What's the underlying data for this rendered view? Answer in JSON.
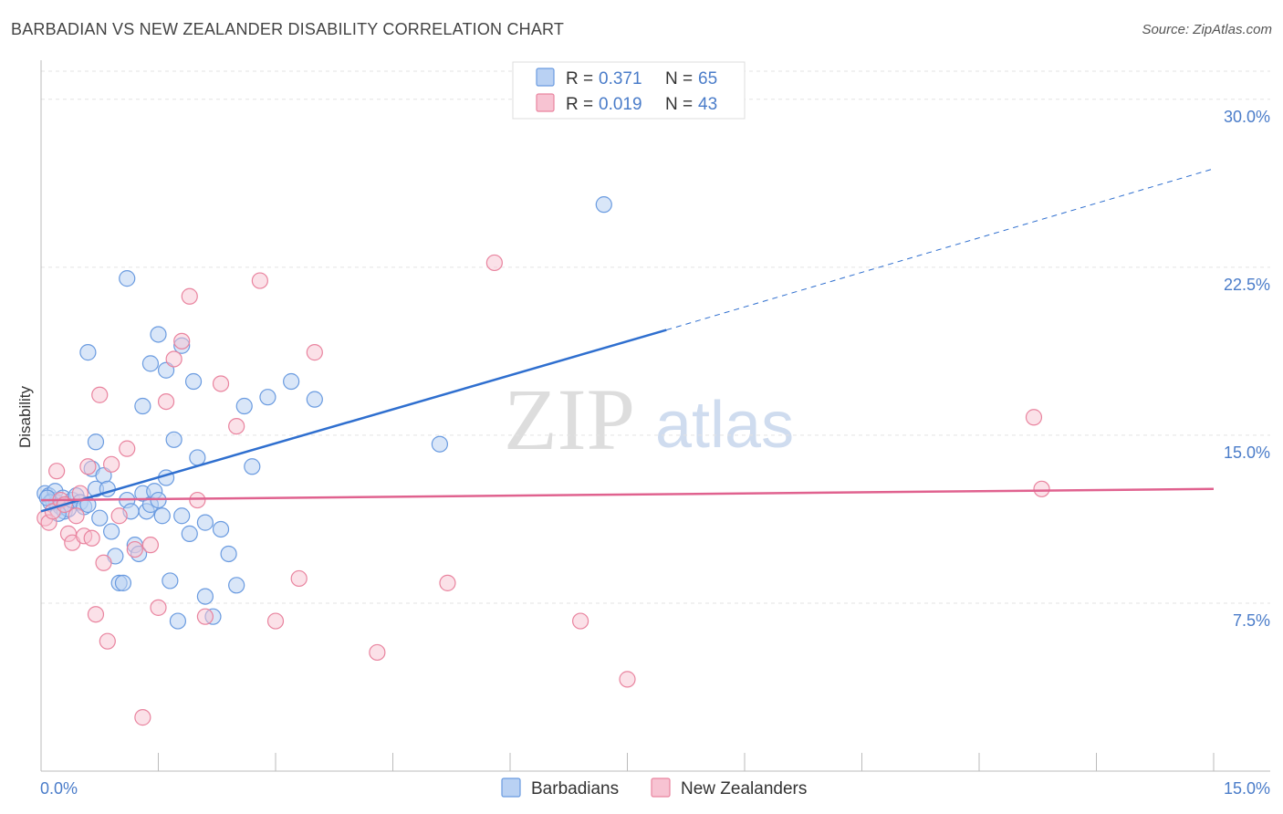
{
  "title": "BARBADIAN VS NEW ZEALANDER DISABILITY CORRELATION CHART",
  "source": "Source: ZipAtlas.com",
  "watermark": {
    "zip": "ZIP",
    "atlas": "atlas"
  },
  "chart_data": {
    "type": "scatter",
    "ylabel": "Disability",
    "xlim": [
      0,
      15
    ],
    "ylim": [
      0,
      31.5
    ],
    "y_ticks": [
      7.5,
      15.0,
      22.5,
      30.0
    ],
    "y_tick_labels": [
      "7.5%",
      "15.0%",
      "22.5%",
      "30.0%"
    ],
    "x_tick_labels": [
      "0.0%",
      "15.0%"
    ],
    "grid": "horizontal dashed",
    "legend_top": [
      {
        "r_label": "R =",
        "r_value": "0.371",
        "n_label": "N =",
        "n_value": "65"
      },
      {
        "r_label": "R =",
        "r_value": "0.019",
        "n_label": "N =",
        "n_value": "43"
      }
    ],
    "colors": {
      "barbadians": "#6a9be0",
      "barbadians_fill": "#b9d1f3",
      "new_zealanders": "#e9849f",
      "new_zealanders_fill": "#f7c3d2",
      "blue_line": "#2f6fcf",
      "pink_line": "#e0628f"
    },
    "series": [
      {
        "name": "Barbadians",
        "trend": {
          "x": [
            0,
            8.0
          ],
          "y": [
            11.6,
            19.7
          ],
          "dashed_extension": {
            "x": [
              8.0,
              15.0
            ],
            "y": [
              19.7,
              26.9
            ]
          }
        },
        "points": [
          [
            0.05,
            12.4
          ],
          [
            0.1,
            12.3
          ],
          [
            0.15,
            12.1
          ],
          [
            0.18,
            12.5
          ],
          [
            0.2,
            12.0
          ],
          [
            0.25,
            11.8
          ],
          [
            0.28,
            12.2
          ],
          [
            0.3,
            11.6
          ],
          [
            0.35,
            11.7
          ],
          [
            0.4,
            12.1
          ],
          [
            0.45,
            12.3
          ],
          [
            0.5,
            12.0
          ],
          [
            0.55,
            11.8
          ],
          [
            0.6,
            11.9
          ],
          [
            0.12,
            12.0
          ],
          [
            0.22,
            11.5
          ],
          [
            0.08,
            12.2
          ],
          [
            0.65,
            13.5
          ],
          [
            0.7,
            12.6
          ],
          [
            0.75,
            11.3
          ],
          [
            0.8,
            13.2
          ],
          [
            0.85,
            12.6
          ],
          [
            0.9,
            10.7
          ],
          [
            0.95,
            9.6
          ],
          [
            1.0,
            8.4
          ],
          [
            1.05,
            8.4
          ],
          [
            1.1,
            12.1
          ],
          [
            1.15,
            11.6
          ],
          [
            1.2,
            10.1
          ],
          [
            1.25,
            9.7
          ],
          [
            1.3,
            12.4
          ],
          [
            1.35,
            11.6
          ],
          [
            1.4,
            11.9
          ],
          [
            1.45,
            12.5
          ],
          [
            1.5,
            12.1
          ],
          [
            1.55,
            11.4
          ],
          [
            1.6,
            13.1
          ],
          [
            1.65,
            8.5
          ],
          [
            1.7,
            14.8
          ],
          [
            1.75,
            6.7
          ],
          [
            1.8,
            11.4
          ],
          [
            1.9,
            10.6
          ],
          [
            2.0,
            14.0
          ],
          [
            2.1,
            7.8
          ],
          [
            2.2,
            6.9
          ],
          [
            2.3,
            10.8
          ],
          [
            2.4,
            9.7
          ],
          [
            2.5,
            8.3
          ],
          [
            0.6,
            18.7
          ],
          [
            0.7,
            14.7
          ],
          [
            1.1,
            22.0
          ],
          [
            1.3,
            16.3
          ],
          [
            1.4,
            18.2
          ],
          [
            1.5,
            19.5
          ],
          [
            1.6,
            17.9
          ],
          [
            1.8,
            19.0
          ],
          [
            1.95,
            17.4
          ],
          [
            2.1,
            11.1
          ],
          [
            2.6,
            16.3
          ],
          [
            2.7,
            13.6
          ],
          [
            2.9,
            16.7
          ],
          [
            3.2,
            17.4
          ],
          [
            3.5,
            16.6
          ],
          [
            5.1,
            14.6
          ],
          [
            7.2,
            25.3
          ]
        ]
      },
      {
        "name": "New Zealanders",
        "trend": {
          "x": [
            0,
            15.0
          ],
          "y": [
            12.1,
            12.6
          ]
        },
        "points": [
          [
            0.05,
            11.3
          ],
          [
            0.1,
            11.1
          ],
          [
            0.15,
            11.6
          ],
          [
            0.2,
            13.4
          ],
          [
            0.25,
            12.1
          ],
          [
            0.3,
            11.9
          ],
          [
            0.35,
            10.6
          ],
          [
            0.4,
            10.2
          ],
          [
            0.45,
            11.4
          ],
          [
            0.5,
            12.4
          ],
          [
            0.55,
            10.5
          ],
          [
            0.6,
            13.6
          ],
          [
            0.65,
            10.4
          ],
          [
            0.7,
            7.0
          ],
          [
            0.75,
            16.8
          ],
          [
            0.8,
            9.3
          ],
          [
            0.85,
            5.8
          ],
          [
            0.9,
            13.7
          ],
          [
            1.0,
            11.4
          ],
          [
            1.1,
            14.4
          ],
          [
            1.2,
            9.9
          ],
          [
            1.3,
            2.4
          ],
          [
            1.4,
            10.1
          ],
          [
            1.5,
            7.3
          ],
          [
            1.6,
            16.5
          ],
          [
            1.7,
            18.4
          ],
          [
            1.8,
            19.2
          ],
          [
            1.9,
            21.2
          ],
          [
            2.0,
            12.1
          ],
          [
            2.1,
            6.9
          ],
          [
            2.3,
            17.3
          ],
          [
            2.5,
            15.4
          ],
          [
            2.8,
            21.9
          ],
          [
            3.0,
            6.7
          ],
          [
            3.3,
            8.6
          ],
          [
            3.5,
            18.7
          ],
          [
            4.3,
            5.3
          ],
          [
            5.2,
            8.4
          ],
          [
            5.8,
            22.7
          ],
          [
            6.9,
            6.7
          ],
          [
            7.5,
            4.1
          ],
          [
            12.7,
            15.8
          ],
          [
            12.8,
            12.6
          ]
        ]
      }
    ]
  },
  "bottom_legend": [
    "Barbadians",
    "New Zealanders"
  ]
}
